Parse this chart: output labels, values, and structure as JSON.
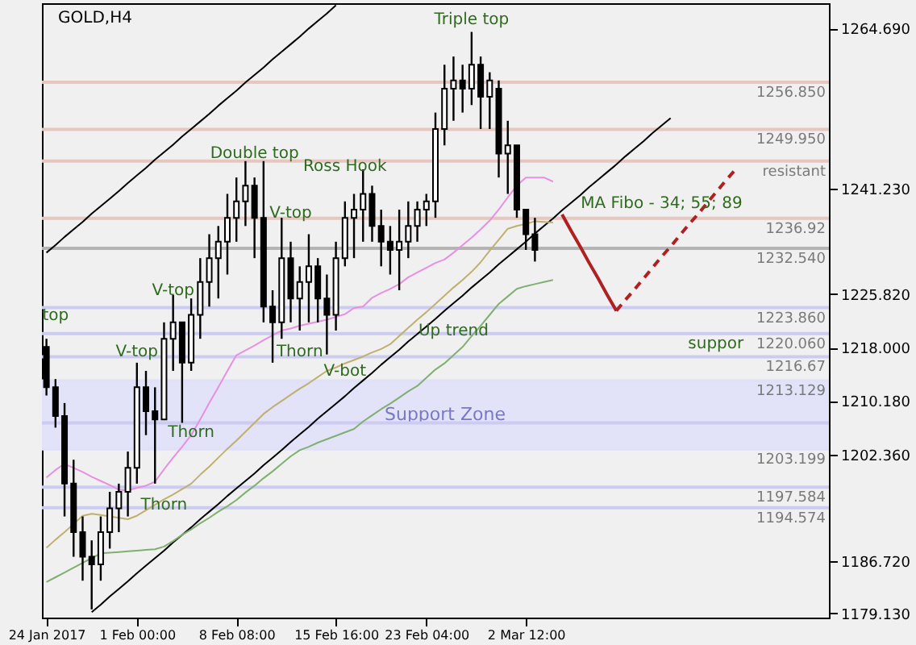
{
  "chart_data": {
    "type": "candlestick",
    "title": "GOLD,H4",
    "color": "#000000",
    "categories": [
      "24 Jan 2017",
      null,
      null,
      null,
      null,
      null,
      null,
      null,
      null,
      null,
      "1 Feb 00:00",
      null,
      null,
      null,
      null,
      null,
      null,
      null,
      null,
      null,
      null,
      "8 Feb 08:00",
      null,
      null,
      null,
      null,
      null,
      null,
      null,
      null,
      null,
      null,
      "15 Feb 16:00",
      null,
      null,
      null,
      null,
      null,
      null,
      null,
      null,
      null,
      "23 Feb 04:00",
      null,
      null,
      null,
      null,
      null,
      null,
      null,
      null,
      null,
      null,
      "2 Mar 12:00",
      null,
      null,
      null,
      null,
      null,
      null,
      null,
      null,
      null,
      null,
      null,
      null,
      null,
      null,
      null,
      null,
      null,
      null,
      null,
      null,
      null,
      null,
      null,
      null,
      null,
      null,
      null,
      null,
      null,
      null,
      null,
      null,
      null
    ],
    "ohlc": [
      [
        1218.1,
        1219.3,
        1211.0,
        1212.2
      ],
      [
        1212.2,
        1213.4,
        1206.3,
        1208.0
      ],
      [
        1208.0,
        1209.9,
        1193.3,
        1198.1
      ],
      [
        1198.1,
        1201.6,
        1187.4,
        1191.0
      ],
      [
        1191.0,
        1193.3,
        1183.9,
        1187.4
      ],
      [
        1187.4,
        1189.8,
        1179.7,
        1186.3
      ],
      [
        1186.3,
        1193.3,
        1183.9,
        1191.0
      ],
      [
        1191.0,
        1196.9,
        1188.6,
        1194.5
      ],
      [
        1194.5,
        1198.1,
        1191.0,
        1196.9
      ],
      [
        1196.9,
        1202.8,
        1193.3,
        1200.4
      ],
      [
        1200.4,
        1215.8,
        1198.1,
        1212.2
      ],
      [
        1212.2,
        1214.6,
        1205.2,
        1208.7
      ],
      [
        1208.7,
        1212.2,
        1198.1,
        1207.5
      ],
      [
        1207.5,
        1221.7,
        1207.5,
        1219.3
      ],
      [
        1219.3,
        1225.7,
        1214.6,
        1221.7
      ],
      [
        1221.7,
        1221.7,
        1207.0,
        1215.8
      ],
      [
        1215.8,
        1225.2,
        1214.6,
        1222.8
      ],
      [
        1222.8,
        1231.1,
        1219.3,
        1227.6
      ],
      [
        1227.6,
        1234.6,
        1224.0,
        1231.1
      ],
      [
        1231.1,
        1235.8,
        1225.2,
        1233.5
      ],
      [
        1233.5,
        1240.5,
        1228.7,
        1237.0
      ],
      [
        1237.0,
        1242.9,
        1233.5,
        1239.4
      ],
      [
        1239.4,
        1245.3,
        1235.8,
        1241.7
      ],
      [
        1241.7,
        1242.9,
        1231.1,
        1237.0
      ],
      [
        1237.0,
        1245.3,
        1221.7,
        1224.0
      ],
      [
        1224.0,
        1226.4,
        1215.8,
        1221.7
      ],
      [
        1221.7,
        1237.0,
        1219.3,
        1231.1
      ],
      [
        1231.1,
        1233.5,
        1221.7,
        1225.2
      ],
      [
        1225.2,
        1229.9,
        1220.5,
        1227.6
      ],
      [
        1227.6,
        1234.6,
        1221.7,
        1229.9
      ],
      [
        1229.9,
        1231.1,
        1221.7,
        1225.2
      ],
      [
        1225.2,
        1228.7,
        1217.0,
        1222.8
      ],
      [
        1222.8,
        1233.5,
        1220.5,
        1231.1
      ],
      [
        1231.1,
        1239.4,
        1229.9,
        1237.0
      ],
      [
        1237.0,
        1240.5,
        1231.1,
        1238.2
      ],
      [
        1238.2,
        1244.1,
        1233.5,
        1240.5
      ],
      [
        1240.5,
        1241.7,
        1233.5,
        1235.8
      ],
      [
        1235.8,
        1238.2,
        1229.9,
        1233.5
      ],
      [
        1233.5,
        1235.8,
        1228.7,
        1232.3
      ],
      [
        1232.3,
        1238.2,
        1226.4,
        1233.5
      ],
      [
        1233.5,
        1239.4,
        1231.1,
        1235.8
      ],
      [
        1235.8,
        1239.4,
        1233.5,
        1238.2
      ],
      [
        1238.2,
        1240.5,
        1235.8,
        1239.4
      ],
      [
        1239.4,
        1252.4,
        1237.0,
        1250.0
      ],
      [
        1250.0,
        1259.4,
        1247.6,
        1255.9
      ],
      [
        1255.9,
        1260.6,
        1251.2,
        1257.1
      ],
      [
        1257.1,
        1259.4,
        1252.4,
        1255.9
      ],
      [
        1255.9,
        1264.2,
        1253.5,
        1259.4
      ],
      [
        1259.4,
        1260.6,
        1250.0,
        1254.7
      ],
      [
        1254.7,
        1258.3,
        1250.0,
        1257.1
      ],
      [
        1255.9,
        1257.1,
        1242.9,
        1246.4
      ],
      [
        1246.4,
        1251.2,
        1240.5,
        1247.6
      ],
      [
        1247.6,
        1247.6,
        1237.0,
        1238.2
      ],
      [
        1238.2,
        1238.2,
        1232.3,
        1234.6
      ],
      [
        1234.6,
        1237.0,
        1230.6,
        1232.3
      ],
      null,
      null,
      null,
      null,
      null,
      null,
      null,
      null,
      null,
      null,
      null,
      null,
      null,
      null,
      null,
      null,
      null,
      null,
      null,
      null,
      null,
      null,
      null,
      null,
      null,
      null,
      null,
      null,
      null,
      null,
      null,
      null
    ],
    "series": [
      {
        "type": "line",
        "color": "#000000",
        "values": [
          null,
          null,
          null,
          null,
          null,
          1179.3,
          1180.4,
          1181.6,
          1182.7,
          1183.8,
          1185.0,
          1186.1,
          1187.2,
          1188.3,
          1189.5,
          1190.6,
          1191.7,
          1192.9,
          1194.0,
          1195.1,
          1196.3,
          1197.4,
          1198.5,
          1199.6,
          1200.8,
          1201.9,
          1203.0,
          1204.2,
          1205.3,
          1206.4,
          1207.6,
          1208.7,
          1209.8,
          1210.9,
          1212.1,
          1213.2,
          1214.3,
          1215.5,
          1216.6,
          1217.7,
          1218.9,
          1220.0,
          1221.1,
          1222.2,
          1223.4,
          1224.5,
          1225.6,
          1226.8,
          1227.9,
          1229.0,
          1230.2,
          1231.3,
          1232.4,
          1233.5,
          1234.7,
          1235.8,
          1236.9,
          1238.1,
          1239.2,
          1240.3,
          1241.5,
          1242.6,
          1243.7,
          1244.8,
          1246.0,
          1247.1,
          1248.2,
          1249.4,
          1250.5,
          1251.6,
          null,
          null,
          null,
          null,
          null,
          null,
          null,
          null,
          null,
          null,
          null,
          null,
          null,
          null,
          null,
          null,
          null
        ]
      },
      {
        "type": "line",
        "color": "#000000",
        "values": [
          1231.9,
          1233.0,
          1234.2,
          1235.3,
          1236.4,
          1237.6,
          1238.7,
          1239.8,
          1240.9,
          1242.1,
          1243.2,
          1244.3,
          1245.5,
          1246.6,
          1247.7,
          1248.9,
          1250.0,
          1251.1,
          1252.2,
          1253.4,
          1254.5,
          1255.6,
          1256.8,
          1257.9,
          1259.0,
          1260.2,
          1261.3,
          1262.4,
          1263.5,
          1264.7,
          1265.8,
          1266.9,
          1268.1,
          null,
          null,
          null,
          null,
          null,
          null,
          null,
          null,
          null,
          null,
          null,
          null,
          null,
          null,
          null,
          null,
          null,
          null,
          null,
          null,
          null,
          null,
          null,
          null,
          null,
          null,
          null,
          null,
          null,
          null,
          null,
          null,
          null,
          null,
          null,
          null,
          null,
          null,
          null,
          null,
          null,
          null,
          null,
          null,
          null,
          null,
          null,
          null,
          null,
          null,
          null,
          null,
          null,
          null
        ]
      },
      {
        "type": "line",
        "color": "#e890e0",
        "values": [
          1199.0,
          1200.1,
          1201.0,
          1200.4,
          1199.8,
          1199.1,
          1198.5,
          1197.9,
          1197.2,
          1197.1,
          1197.5,
          1197.8,
          1198.4,
          1200.2,
          1201.9,
          1203.5,
          1205.2,
          1207.5,
          1209.9,
          1212.2,
          1214.6,
          1216.9,
          1217.6,
          1218.3,
          1219.1,
          1219.8,
          1220.5,
          1220.8,
          1221.2,
          1221.5,
          1221.8,
          1222.1,
          1222.5,
          1222.9,
          1223.8,
          1224.0,
          1225.3,
          1226.0,
          1226.6,
          1227.3,
          1228.3,
          1229.0,
          1229.7,
          1230.4,
          1230.9,
          1231.9,
          1233.0,
          1234.1,
          1235.3,
          1236.6,
          1238.2,
          1240.0,
          1241.7,
          1242.9,
          1242.9,
          1242.9,
          1242.3,
          null,
          null,
          null,
          null,
          null,
          null,
          null,
          null,
          null,
          null,
          null,
          null,
          null,
          null,
          null,
          null,
          null,
          null,
          null,
          null,
          null,
          null,
          null,
          null,
          null,
          null,
          null,
          null,
          null,
          null
        ]
      },
      {
        "type": "line",
        "color": "#c0b070",
        "values": [
          1188.7,
          1189.9,
          1191.0,
          1192.2,
          1193.4,
          1193.7,
          1193.5,
          1193.3,
          1193.1,
          1192.9,
          1193.4,
          1194.2,
          1195.0,
          1195.8,
          1196.5,
          1197.3,
          1198.1,
          1199.4,
          1200.6,
          1201.9,
          1203.2,
          1204.4,
          1205.7,
          1207.0,
          1208.3,
          1209.3,
          1210.2,
          1211.1,
          1212.0,
          1212.8,
          1213.7,
          1214.6,
          1215.1,
          1215.7,
          1216.2,
          1216.7,
          1217.3,
          1217.8,
          1218.5,
          1219.7,
          1220.9,
          1222.1,
          1223.2,
          1224.4,
          1225.6,
          1226.8,
          1227.9,
          1229.1,
          1230.5,
          1232.2,
          1233.8,
          1235.4,
          1235.8,
          1236.1,
          1236.5,
          1236.4,
          1236.3,
          null,
          null,
          null,
          null,
          null,
          null,
          null,
          null,
          null,
          null,
          null,
          null,
          null,
          null,
          null,
          null,
          null,
          null,
          null,
          null,
          null,
          null,
          null,
          null,
          null,
          null,
          null,
          null,
          null,
          null
        ]
      },
      {
        "type": "line",
        "color": "#80b070",
        "values": [
          1183.7,
          1184.4,
          1185.1,
          1185.8,
          1186.5,
          1187.2,
          1187.9,
          1188.0,
          1188.1,
          1188.2,
          1188.3,
          1188.4,
          1188.5,
          1188.9,
          1189.7,
          1190.6,
          1191.4,
          1192.3,
          1193.1,
          1194.0,
          1194.8,
          1195.7,
          1196.8,
          1197.8,
          1198.9,
          1199.9,
          1201.0,
          1202.1,
          1203.0,
          1203.5,
          1204.1,
          1204.6,
          1205.1,
          1205.6,
          1206.1,
          1207.2,
          1208.1,
          1209.0,
          1209.8,
          1210.7,
          1211.6,
          1212.4,
          1213.6,
          1214.8,
          1215.7,
          1216.9,
          1218.1,
          1219.7,
          1221.2,
          1222.8,
          1224.4,
          1225.5,
          1226.6,
          1227.0,
          1227.3,
          1227.6,
          1227.9,
          null,
          null,
          null,
          null,
          null,
          null,
          null,
          null,
          null,
          null,
          null,
          null,
          null,
          null,
          null,
          null,
          null,
          null,
          null,
          null,
          null,
          null,
          null,
          null,
          null,
          null,
          null,
          null,
          null,
          null
        ]
      },
      {
        "type": "line",
        "color": "#b02020",
        "values": [
          null,
          null,
          null,
          null,
          null,
          null,
          null,
          null,
          null,
          null,
          null,
          null,
          null,
          null,
          null,
          null,
          null,
          null,
          null,
          null,
          null,
          null,
          null,
          null,
          null,
          null,
          null,
          null,
          null,
          null,
          null,
          null,
          null,
          null,
          null,
          null,
          null,
          null,
          null,
          null,
          null,
          null,
          null,
          null,
          null,
          null,
          null,
          null,
          null,
          null,
          null,
          null,
          null,
          null,
          null,
          null,
          null,
          1237.5,
          1235.1,
          1232.8,
          1230.4,
          1228.1,
          1225.7,
          1223.4,
          null,
          null,
          null,
          null,
          null,
          null,
          null,
          null,
          null,
          null,
          null,
          null,
          null,
          null,
          null,
          null,
          null,
          null,
          null,
          null,
          null,
          null,
          null
        ]
      },
      {
        "type": "line",
        "color": "#b02020",
        "line_style": "dashed",
        "values": [
          null,
          null,
          null,
          null,
          null,
          null,
          null,
          null,
          null,
          null,
          null,
          null,
          null,
          null,
          null,
          null,
          null,
          null,
          null,
          null,
          null,
          null,
          null,
          null,
          null,
          null,
          null,
          null,
          null,
          null,
          null,
          null,
          null,
          null,
          null,
          null,
          null,
          null,
          null,
          null,
          null,
          null,
          null,
          null,
          null,
          null,
          null,
          null,
          null,
          null,
          null,
          null,
          null,
          null,
          null,
          null,
          null,
          null,
          null,
          null,
          null,
          null,
          null,
          1223.4,
          1225.0,
          1226.5,
          1228.1,
          1229.7,
          1231.3,
          1232.8,
          1234.4,
          1236.0,
          1237.5,
          1239.1,
          1240.7,
          1242.3,
          1243.8,
          null,
          null,
          null,
          null,
          null,
          null,
          null,
          null,
          null,
          null
        ]
      }
    ],
    "ylim": [
      1178.5,
      1268.4
    ],
    "yticks": [
      {
        "value": 1179.13,
        "label": "1179.130"
      },
      {
        "value": 1186.72,
        "label": "1186.720"
      },
      {
        "value": 1202.36,
        "label": "1202.360"
      },
      {
        "value": 1210.18,
        "label": "1210.180"
      },
      {
        "value": 1218.0,
        "label": "1218.000"
      },
      {
        "value": 1225.82,
        "label": "1225.820"
      },
      {
        "value": 1241.23,
        "label": "1241.230"
      },
      {
        "value": 1264.69,
        "label": "1264.690"
      }
    ],
    "ref_lines": [
      {
        "axis": "y",
        "value": 1256.85,
        "label": "1256.850",
        "color": "#e6c6be"
      },
      {
        "axis": "y",
        "value": 1249.95,
        "label": "1249.950",
        "color": "#e6c6be"
      },
      {
        "axis": "y",
        "value": 1245.3,
        "label": "resistant",
        "color": "#e6c6be"
      },
      {
        "axis": "y",
        "value": 1236.92,
        "label": "1236.92",
        "color": "#e6c6be"
      },
      {
        "axis": "y",
        "value": 1232.54,
        "label": "1232.540",
        "color": "#b4b4b4"
      },
      {
        "axis": "y",
        "value": 1223.86,
        "label": "1223.860",
        "color": "#ccccf2"
      },
      {
        "axis": "y",
        "value": 1220.06,
        "label": "1220.060",
        "color": "#ccccf2"
      },
      {
        "axis": "y",
        "value": 1216.67,
        "label": "1216.67",
        "color": "#ccccf2"
      },
      {
        "axis": "y",
        "value": 1213.129,
        "label": "1213.129",
        "color": "#e0e0f8"
      },
      {
        "axis": "y",
        "value": 1207.0,
        "label": null,
        "color": "#ccccf2"
      },
      {
        "axis": "y",
        "value": 1203.199,
        "label": "1203.199",
        "color": "#e0e0f8"
      },
      {
        "axis": "y",
        "value": 1197.584,
        "label": "1197.584",
        "color": "#ccccf2"
      },
      {
        "axis": "y",
        "value": 1194.574,
        "label": "1194.574",
        "color": "#ccccf2"
      }
    ],
    "bands": [
      {
        "axis": "y",
        "from": 1203.199,
        "to": 1213.129,
        "label": "Support Zone",
        "color": "#e2e2f8"
      }
    ],
    "annotations": [
      "Triple top",
      "Double top",
      "Ross Hook",
      {
        "text": "V-top",
        "y": 1237.7
      },
      "V-top",
      "V-top",
      "top",
      "Thorn",
      "Thorn",
      {
        "text": "Thorn",
        "y": 1195.0
      },
      "V-bot",
      "Up trend",
      "MA Fibo - 34; 55; 89",
      "suppor"
    ],
    "grid": false
  }
}
